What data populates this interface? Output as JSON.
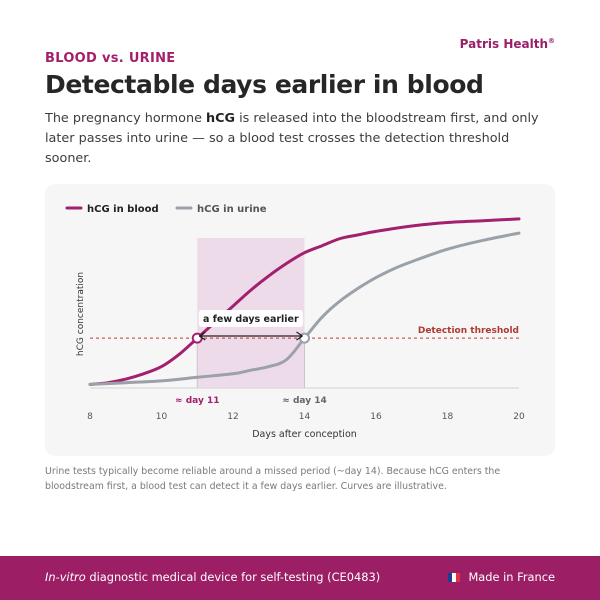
{
  "brand": {
    "name": "Patris Health",
    "mark": "®"
  },
  "eyebrow": "BLOOD vs. URINE",
  "title": "Detectable days earlier in blood",
  "intro": {
    "part1": "The pregnancy hormone ",
    "bold": "hCG",
    "part2": " is released into the bloodstream first, and only later passes into urine — so a blood test crosses the detection threshold sooner."
  },
  "chart_data": {
    "type": "line",
    "xlabel": "Days after conception",
    "ylabel": "hCG concentration",
    "xlim": [
      8,
      20
    ],
    "ylim": [
      0,
      1
    ],
    "xticks": [
      8,
      10,
      12,
      14,
      16,
      18,
      20
    ],
    "grid": false,
    "legend_position": "top-left",
    "threshold": {
      "label": "Detection threshold",
      "value": 0.28
    },
    "highlight": {
      "from": 11,
      "to": 14,
      "label": "a few days earlier"
    },
    "markers": [
      {
        "label": "≈ day 11",
        "x": 11,
        "series": "hCG in blood"
      },
      {
        "label": "≈ day 14",
        "x": 14,
        "series": "hCG in urine"
      }
    ],
    "series": [
      {
        "name": "hCG in blood",
        "color": "#a3206e",
        "x": [
          8,
          8.5,
          9,
          9.5,
          10,
          10.5,
          11,
          11.5,
          12,
          12.5,
          13,
          13.5,
          14,
          14.5,
          15,
          15.5,
          16,
          17,
          18,
          19,
          20
        ],
        "y": [
          0.02,
          0.03,
          0.05,
          0.08,
          0.12,
          0.19,
          0.28,
          0.37,
          0.46,
          0.55,
          0.63,
          0.7,
          0.76,
          0.8,
          0.84,
          0.86,
          0.88,
          0.91,
          0.93,
          0.94,
          0.95
        ]
      },
      {
        "name": "hCG in urine",
        "color": "#9aa1a8",
        "x": [
          8,
          9,
          10,
          11,
          12,
          12.5,
          13,
          13.5,
          14,
          14.5,
          15,
          15.5,
          16,
          16.5,
          17,
          18,
          19,
          20
        ],
        "y": [
          0.02,
          0.03,
          0.04,
          0.06,
          0.08,
          0.1,
          0.12,
          0.16,
          0.28,
          0.4,
          0.49,
          0.56,
          0.62,
          0.67,
          0.71,
          0.78,
          0.83,
          0.87
        ]
      }
    ]
  },
  "note": "Urine tests typically become reliable around a missed period (~day 14). Because hCG enters the bloodstream first, a blood test can detect it a few days earlier. Curves are illustrative.",
  "footer": {
    "left_italic": "In-vitro",
    "left_rest": " diagnostic medical device for self-testing (CE0483)",
    "right": "Made in France",
    "flag_colors": [
      "#1f3f8f",
      "#ffffff",
      "#e0313d"
    ]
  }
}
